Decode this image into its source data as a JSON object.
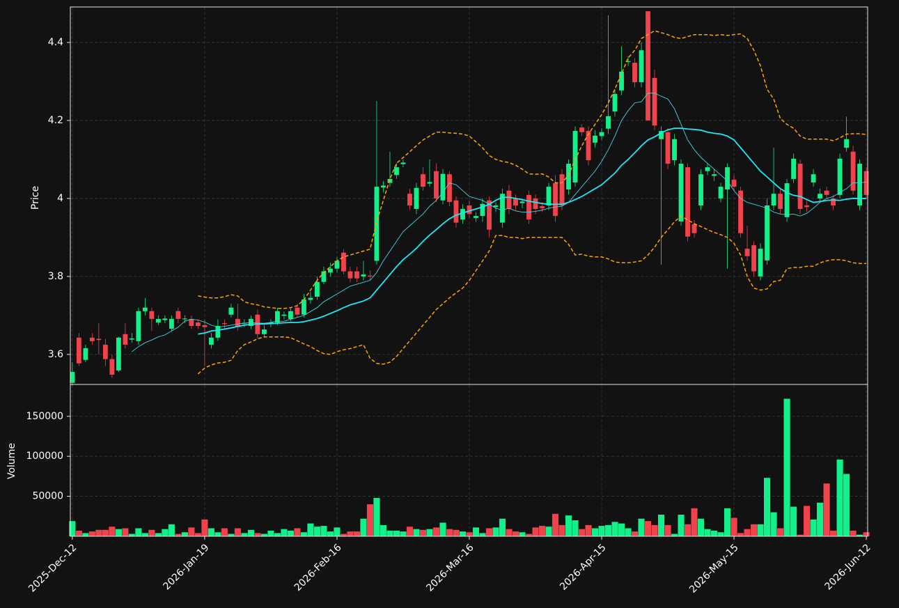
{
  "chart_data": {
    "type": "candlestick",
    "ylabel": "Price",
    "volume_label": "Volume",
    "up_color": "#12f08a",
    "down_color": "#f0434c",
    "grid": true,
    "xlim": [
      -0.3,
      120.2
    ],
    "xticks": [
      {
        "value": 0,
        "label": "2025-Dec-12"
      },
      {
        "value": 20,
        "label": "2026-Jan-19"
      },
      {
        "value": 40,
        "label": "2026-Feb-16"
      },
      {
        "value": 60,
        "label": "2026-Mar-16"
      },
      {
        "value": 80,
        "label": "2026-Apr-15"
      },
      {
        "value": 100,
        "label": "2026-May-15"
      },
      {
        "value": 120,
        "label": "2026-Jun-12"
      }
    ],
    "ylim": [
      3.523,
      4.491
    ],
    "yticks": [
      3.6,
      3.8,
      4.0,
      4.2,
      4.4
    ],
    "volume_ylim": [
      0,
      189000
    ],
    "volume_yticks": [
      50000,
      100000,
      150000
    ],
    "open": [
      3.527,
      3.643,
      3.586,
      3.643,
      3.64,
      3.625,
      3.588,
      3.559,
      3.652,
      3.638,
      3.634,
      3.711,
      3.711,
      3.682,
      3.688,
      3.666,
      3.711,
      3.69,
      3.691,
      3.682,
      3.675,
      3.625,
      3.643,
      3.68,
      3.702,
      3.691,
      3.679,
      3.673,
      3.702,
      3.652,
      3.679,
      3.682,
      3.699,
      3.691,
      3.72,
      3.702,
      3.74,
      3.748,
      3.786,
      3.81,
      3.82,
      3.861,
      3.813,
      3.813,
      3.8,
      3.802,
      3.84,
      4.028,
      4.04,
      4.06,
      4.088,
      4.012,
      3.973,
      4.062,
      4.038,
      4.07,
      3.995,
      4.062,
      3.995,
      3.946,
      3.982,
      3.95,
      3.955,
      3.995,
      3.978,
      3.938,
      4.02,
      4.0,
      3.988,
      4.009,
      4.0,
      3.98,
      3.982,
      4.039,
      4.062,
      4.023,
      4.041,
      4.182,
      4.173,
      4.143,
      4.16,
      4.179,
      4.223,
      4.277,
      4.35,
      4.348,
      4.298,
      4.48,
      4.309,
      4.152,
      4.17,
      4.098,
      3.941,
      4.08,
      3.934,
      3.982,
      4.07,
      4.058,
      4.0,
      4.023,
      4.048,
      4.02,
      3.871,
      3.88,
      3.8,
      3.841,
      3.982,
      4.012,
      3.952,
      4.05,
      4.089,
      3.982,
      4.041,
      4.0,
      4.02,
      4.0,
      4.009,
      4.13,
      4.12,
      3.982,
      4.07
    ],
    "high": [
      3.58,
      3.655,
      3.625,
      3.655,
      3.68,
      3.64,
      3.6,
      3.645,
      3.68,
      3.655,
      3.72,
      3.745,
      3.72,
      3.7,
      3.7,
      3.7,
      3.72,
      3.7,
      3.7,
      3.69,
      3.69,
      3.655,
      3.69,
      3.69,
      3.73,
      3.73,
      3.69,
      3.7,
      3.715,
      3.675,
      3.69,
      3.72,
      3.71,
      3.72,
      3.73,
      3.755,
      3.76,
      3.8,
      3.825,
      3.835,
      3.85,
      3.87,
      3.825,
      3.825,
      3.84,
      3.815,
      4.25,
      4.045,
      4.12,
      4.09,
      4.1,
      4.025,
      4.04,
      4.08,
      4.1,
      4.09,
      4.075,
      4.07,
      4.005,
      3.985,
      3.995,
      3.965,
      4.0,
      4.005,
      3.99,
      4.025,
      4.035,
      4.01,
      4.0,
      4.02,
      4.01,
      3.99,
      4.04,
      4.06,
      4.075,
      4.1,
      4.185,
      4.19,
      4.185,
      4.175,
      4.18,
      4.47,
      4.28,
      4.39,
      4.365,
      4.36,
      4.4,
      4.48,
      4.33,
      4.185,
      4.18,
      4.165,
      4.1,
      4.09,
      3.945,
      4.075,
      4.09,
      4.075,
      4.04,
      4.09,
      4.06,
      4.03,
      3.93,
      3.89,
      3.885,
      4.0,
      4.13,
      4.025,
      4.05,
      4.115,
      4.1,
      3.995,
      4.075,
      4.025,
      4.03,
      4.01,
      4.115,
      4.21,
      4.135,
      4.1,
      4.08
    ],
    "low": [
      3.52,
      3.57,
      3.58,
      3.625,
      3.6,
      3.57,
      3.54,
      3.555,
      3.615,
      3.63,
      3.625,
      3.7,
      3.66,
      3.675,
      3.68,
      3.66,
      3.68,
      3.68,
      3.665,
      3.665,
      3.57,
      3.615,
      3.635,
      3.665,
      3.695,
      3.66,
      3.67,
      3.665,
      3.64,
      3.645,
      3.67,
      3.675,
      3.69,
      3.685,
      3.695,
      3.695,
      3.73,
      3.74,
      3.78,
      3.8,
      3.81,
      3.805,
      3.785,
      3.785,
      3.79,
      3.79,
      3.83,
      4.015,
      4.03,
      4.05,
      4.08,
      3.97,
      3.96,
      4.02,
      4.03,
      3.99,
      3.985,
      3.98,
      3.925,
      3.935,
      3.95,
      3.94,
      3.94,
      3.9,
      3.965,
      3.925,
      3.96,
      3.97,
      3.975,
      3.935,
      3.96,
      3.965,
      3.97,
      3.94,
      3.97,
      4.01,
      4.03,
      4.16,
      4.085,
      4.13,
      4.15,
      4.165,
      4.21,
      4.265,
      4.34,
      4.285,
      4.285,
      4.2,
      4.175,
      3.83,
      4.075,
      4.085,
      3.93,
      3.89,
      3.9,
      3.97,
      4.06,
      4.045,
      3.99,
      3.82,
      4.02,
      3.9,
      3.84,
      3.8,
      3.79,
      3.83,
      3.97,
      3.96,
      3.94,
      4.04,
      3.96,
      3.965,
      4.03,
      3.99,
      4.0,
      3.97,
      4.0,
      4.12,
      4.01,
      3.97,
      4.0
    ],
    "close": [
      3.555,
      3.577,
      3.616,
      3.634,
      3.637,
      3.588,
      3.548,
      3.643,
      3.625,
      3.641,
      3.711,
      3.72,
      3.691,
      3.691,
      3.692,
      3.691,
      3.691,
      3.692,
      3.673,
      3.673,
      3.67,
      3.643,
      3.673,
      3.678,
      3.72,
      3.67,
      3.681,
      3.691,
      3.652,
      3.664,
      3.682,
      3.711,
      3.702,
      3.711,
      3.702,
      3.741,
      3.745,
      3.786,
      3.813,
      3.82,
      3.84,
      3.813,
      3.795,
      3.795,
      3.805,
      3.8,
      4.03,
      4.033,
      4.05,
      4.08,
      4.092,
      3.982,
      4.027,
      4.03,
      4.042,
      4.0,
      4.063,
      3.991,
      3.938,
      3.973,
      3.96,
      3.955,
      3.986,
      3.92,
      3.982,
      4.012,
      3.973,
      3.982,
      3.992,
      3.946,
      3.973,
      3.975,
      4.03,
      3.955,
      3.982,
      4.089,
      4.173,
      4.17,
      4.098,
      4.161,
      4.17,
      4.211,
      4.268,
      4.325,
      4.352,
      4.298,
      4.38,
      4.2,
      4.187,
      4.173,
      4.089,
      4.152,
      4.089,
      3.902,
      3.911,
      4.062,
      4.08,
      4.062,
      4.03,
      4.08,
      4.03,
      3.911,
      3.852,
      3.813,
      3.871,
      3.982,
      4.012,
      3.973,
      4.039,
      4.102,
      3.973,
      3.978,
      4.062,
      4.012,
      4.009,
      3.982,
      4.102,
      4.152,
      4.02,
      4.089,
      4.009
    ],
    "volume": [
      19000,
      7000,
      4000,
      6000,
      8000,
      8000,
      12000,
      9000,
      10000,
      3000,
      10000,
      4000,
      8000,
      4000,
      9000,
      15000,
      3000,
      5000,
      11000,
      4000,
      21000,
      10000,
      5000,
      10000,
      3000,
      10000,
      4000,
      8000,
      4000,
      3000,
      7000,
      4000,
      9000,
      7000,
      10000,
      5000,
      16000,
      12000,
      13000,
      6000,
      11000,
      3000,
      6000,
      6000,
      22000,
      40000,
      48000,
      14000,
      7000,
      7000,
      6000,
      12000,
      9000,
      8000,
      9000,
      11000,
      17000,
      9000,
      8000,
      6000,
      5000,
      11000,
      4000,
      10000,
      11000,
      22000,
      9000,
      6000,
      5000,
      3000,
      11000,
      13000,
      12000,
      28000,
      14000,
      26000,
      20000,
      9000,
      14000,
      10000,
      13000,
      14000,
      18000,
      16000,
      10000,
      6000,
      22000,
      19000,
      14000,
      27000,
      14000,
      3000,
      27000,
      15000,
      35000,
      22000,
      9000,
      7000,
      5000,
      35000,
      23000,
      4000,
      9000,
      15000,
      15000,
      73000,
      30000,
      10000,
      172000,
      37000,
      2000,
      38000,
      21000,
      42000,
      66000,
      7000,
      96000,
      78000,
      7000,
      2000,
      5000
    ],
    "lines": [
      {
        "color": "#3fd8e0",
        "style": "thin",
        "values": [
          null,
          null,
          null,
          null,
          null,
          null,
          null,
          null,
          null,
          3.607,
          3.62,
          3.63,
          3.637,
          3.645,
          3.65,
          3.66,
          3.67,
          3.685,
          3.69,
          3.688,
          3.683,
          3.675,
          3.67,
          3.672,
          3.675,
          3.678,
          3.68,
          3.682,
          3.68,
          3.68,
          3.682,
          3.685,
          3.685,
          3.69,
          3.695,
          3.7,
          3.71,
          3.72,
          3.735,
          3.745,
          3.755,
          3.765,
          3.775,
          3.78,
          3.785,
          3.79,
          3.81,
          3.84,
          3.865,
          3.89,
          3.915,
          3.93,
          3.945,
          3.96,
          3.98,
          3.995,
          4.015,
          4.04,
          4.035,
          4.02,
          4.005,
          4.0,
          3.995,
          3.985,
          3.975,
          3.97,
          3.975,
          3.968,
          3.965,
          3.965,
          3.967,
          3.97,
          3.975,
          3.978,
          3.98,
          3.99,
          4.01,
          4.03,
          4.05,
          4.07,
          4.095,
          4.125,
          4.16,
          4.2,
          4.225,
          4.245,
          4.248,
          4.27,
          4.27,
          4.262,
          4.255,
          4.23,
          4.19,
          4.15,
          4.125,
          4.105,
          4.09,
          4.075,
          4.06,
          4.045,
          4.02,
          4.0,
          3.99,
          3.985,
          3.98,
          3.975,
          3.965,
          3.96,
          3.958,
          3.96,
          3.955,
          3.962,
          3.975,
          3.99,
          4.0,
          4.005,
          4.015,
          4.025,
          4.04,
          4.04,
          4.042
        ]
      },
      {
        "color": "#1ee8f8",
        "style": "thick",
        "values": [
          null,
          null,
          null,
          null,
          null,
          null,
          null,
          null,
          null,
          null,
          null,
          null,
          null,
          null,
          null,
          null,
          null,
          null,
          null,
          3.652,
          3.655,
          3.66,
          3.662,
          3.665,
          3.668,
          3.672,
          3.675,
          3.677,
          3.678,
          3.678,
          3.679,
          3.68,
          3.681,
          3.682,
          3.682,
          3.684,
          3.688,
          3.692,
          3.698,
          3.705,
          3.712,
          3.72,
          3.727,
          3.732,
          3.737,
          3.745,
          3.765,
          3.785,
          3.805,
          3.825,
          3.843,
          3.857,
          3.872,
          3.89,
          3.906,
          3.92,
          3.935,
          3.948,
          3.957,
          3.963,
          3.968,
          3.973,
          3.978,
          3.985,
          3.995,
          4.003,
          4.003,
          4.0,
          3.997,
          3.993,
          3.99,
          3.987,
          3.985,
          3.985,
          3.985,
          3.99,
          3.997,
          4.005,
          4.015,
          4.025,
          4.035,
          4.05,
          4.065,
          4.085,
          4.1,
          4.117,
          4.135,
          4.15,
          4.158,
          4.168,
          4.176,
          4.18,
          4.18,
          4.178,
          4.177,
          4.175,
          4.17,
          4.167,
          4.165,
          4.16,
          4.15,
          4.13,
          4.11,
          4.09,
          4.07,
          4.055,
          4.04,
          4.025,
          4.015,
          4.008,
          4.005,
          3.997,
          3.99,
          3.992,
          3.995,
          3.996,
          3.995,
          3.998,
          4.0,
          4.0,
          4.0
        ]
      },
      {
        "color": "#ffa500",
        "style": "dashed",
        "values": [
          null,
          null,
          null,
          null,
          null,
          null,
          null,
          null,
          null,
          null,
          null,
          null,
          null,
          null,
          null,
          null,
          null,
          null,
          null,
          3.75,
          3.747,
          3.745,
          3.745,
          3.748,
          3.753,
          3.75,
          3.735,
          3.73,
          3.727,
          3.722,
          3.72,
          3.718,
          3.718,
          3.72,
          3.725,
          3.74,
          3.765,
          3.79,
          3.81,
          3.825,
          3.84,
          3.85,
          3.855,
          3.86,
          3.865,
          3.87,
          3.94,
          3.995,
          4.05,
          4.09,
          4.105,
          4.12,
          4.135,
          4.15,
          4.16,
          4.17,
          4.17,
          4.168,
          4.167,
          4.165,
          4.16,
          4.145,
          4.13,
          4.11,
          4.1,
          4.095,
          4.092,
          4.085,
          4.075,
          4.063,
          4.062,
          4.063,
          4.055,
          4.04,
          4.04,
          4.06,
          4.1,
          4.135,
          4.165,
          4.19,
          4.215,
          4.245,
          4.28,
          4.32,
          4.36,
          4.38,
          4.41,
          4.42,
          4.43,
          4.425,
          4.42,
          4.413,
          4.41,
          4.415,
          4.42,
          4.42,
          4.42,
          4.418,
          4.42,
          4.418,
          4.42,
          4.422,
          4.41,
          4.38,
          4.34,
          4.28,
          4.255,
          4.205,
          4.19,
          4.18,
          4.16,
          4.152,
          4.152,
          4.152,
          4.152,
          4.148,
          4.155,
          4.165,
          4.166,
          4.166,
          4.164
        ]
      },
      {
        "color": "#ffa500",
        "style": "dashed",
        "values": [
          null,
          null,
          null,
          null,
          null,
          null,
          null,
          null,
          null,
          null,
          null,
          null,
          null,
          null,
          null,
          null,
          null,
          null,
          null,
          3.55,
          3.565,
          3.573,
          3.578,
          3.58,
          3.585,
          3.61,
          3.625,
          3.632,
          3.64,
          3.645,
          3.645,
          3.645,
          3.645,
          3.643,
          3.635,
          3.627,
          3.62,
          3.61,
          3.602,
          3.6,
          3.607,
          3.612,
          3.615,
          3.62,
          3.625,
          3.59,
          3.577,
          3.575,
          3.58,
          3.595,
          3.615,
          3.635,
          3.655,
          3.675,
          3.695,
          3.715,
          3.73,
          3.745,
          3.758,
          3.77,
          3.79,
          3.815,
          3.84,
          3.865,
          3.905,
          3.905,
          3.9,
          3.9,
          3.897,
          3.9,
          3.9,
          3.9,
          3.9,
          3.9,
          3.9,
          3.882,
          3.855,
          3.857,
          3.852,
          3.85,
          3.85,
          3.845,
          3.837,
          3.835,
          3.835,
          3.837,
          3.84,
          3.855,
          3.875,
          3.9,
          3.92,
          3.94,
          3.955,
          3.945,
          3.935,
          3.928,
          3.92,
          3.913,
          3.907,
          3.9,
          3.885,
          3.855,
          3.8,
          3.77,
          3.765,
          3.768,
          3.787,
          3.79,
          3.82,
          3.823,
          3.823,
          3.826,
          3.826,
          3.835,
          3.84,
          3.843,
          3.843,
          3.84,
          3.835,
          3.833,
          3.833
        ]
      }
    ]
  }
}
